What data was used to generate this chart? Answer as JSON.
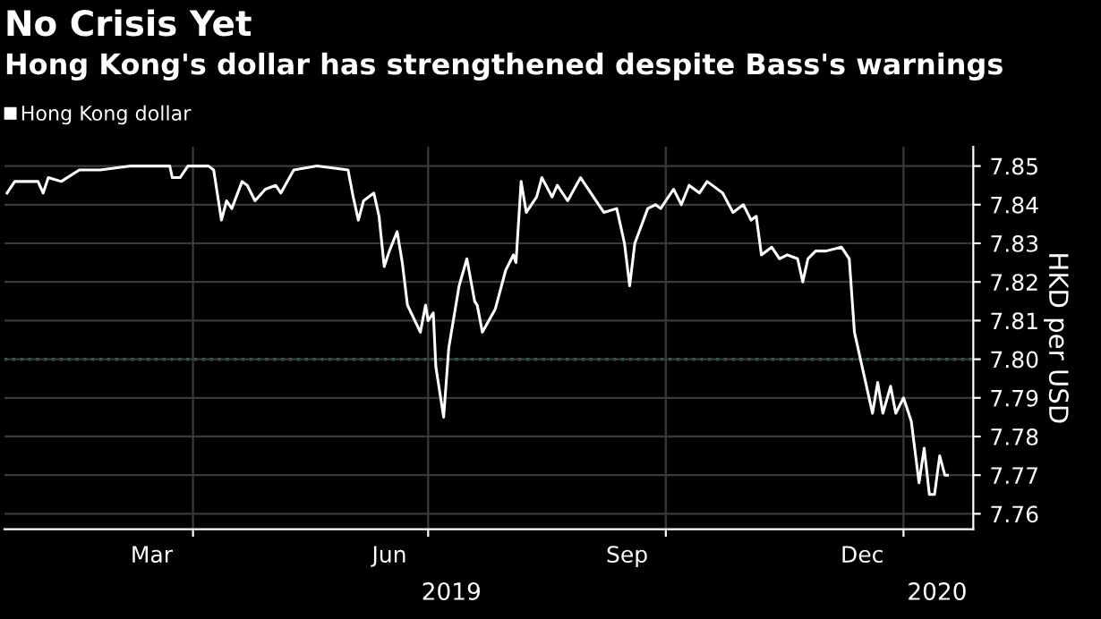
{
  "chart_data": {
    "type": "line",
    "title": "No Crisis Yet",
    "subtitle": "Hong Kong's dollar has strengthened despite Bass's warnings",
    "ylabel": "HKD per USD",
    "x": [
      "2019-01-19",
      "2019-01-22",
      "2019-01-31",
      "2019-02-02",
      "2019-02-04",
      "2019-02-09",
      "2019-02-16",
      "2019-02-24",
      "2019-03-08",
      "2019-03-23",
      "2019-03-24",
      "2019-03-27",
      "2019-03-30",
      "2019-04-07",
      "2019-04-09",
      "2019-04-12",
      "2019-04-14",
      "2019-04-16",
      "2019-04-20",
      "2019-04-22",
      "2019-04-25",
      "2019-04-29",
      "2019-05-03",
      "2019-05-05",
      "2019-05-10",
      "2019-05-19",
      "2019-05-31",
      "2019-06-02",
      "2019-06-04",
      "2019-06-06",
      "2019-06-10",
      "2019-06-12",
      "2019-06-14",
      "2019-06-16",
      "2019-06-19",
      "2019-06-21",
      "2019-06-23",
      "2019-06-28",
      "2019-06-30",
      "2019-07-01",
      "2019-07-03",
      "2019-07-04",
      "2019-07-07",
      "2019-07-09",
      "2019-07-13",
      "2019-07-16",
      "2019-07-19",
      "2019-07-20",
      "2019-07-22",
      "2019-07-27",
      "2019-07-31",
      "2019-08-03",
      "2019-08-04",
      "2019-08-06",
      "2019-08-08",
      "2019-08-12",
      "2019-08-14",
      "2019-08-18",
      "2019-08-20",
      "2019-08-24",
      "2019-08-29",
      "2019-09-02",
      "2019-09-07",
      "2019-09-12",
      "2019-09-15",
      "2019-09-17",
      "2019-09-19",
      "2019-09-24",
      "2019-09-27",
      "2019-09-29",
      "2019-10-04",
      "2019-10-07",
      "2019-10-10",
      "2019-10-14",
      "2019-10-17",
      "2019-10-23",
      "2019-10-27",
      "2019-10-31",
      "2019-11-03",
      "2019-11-05",
      "2019-11-07",
      "2019-11-11",
      "2019-11-14",
      "2019-11-17",
      "2019-11-21",
      "2019-11-23",
      "2019-11-25",
      "2019-11-28",
      "2019-12-02",
      "2019-12-08",
      "2019-12-11",
      "2019-12-13",
      "2019-12-17",
      "2019-12-20",
      "2019-12-22",
      "2019-12-24",
      "2019-12-27",
      "2019-12-29",
      "2020-01-01",
      "2020-01-02",
      "2020-01-04",
      "2020-01-07",
      "2020-01-09",
      "2020-01-11",
      "2020-01-13",
      "2020-01-15",
      "2020-01-17",
      "2020-01-18"
    ],
    "series": [
      {
        "name": "Hong Kong dollar",
        "color": "#ffffff",
        "values": [
          7.843,
          7.846,
          7.846,
          7.843,
          7.847,
          7.846,
          7.849,
          7.849,
          7.85,
          7.85,
          7.847,
          7.847,
          7.85,
          7.85,
          7.849,
          7.836,
          7.841,
          7.839,
          7.846,
          7.845,
          7.841,
          7.844,
          7.845,
          7.843,
          7.849,
          7.85,
          7.849,
          7.842,
          7.836,
          7.841,
          7.843,
          7.837,
          7.824,
          7.828,
          7.833,
          7.825,
          7.814,
          7.807,
          7.814,
          7.81,
          7.812,
          7.798,
          7.785,
          7.803,
          7.819,
          7.826,
          7.815,
          7.814,
          7.807,
          7.813,
          7.823,
          7.827,
          7.825,
          7.846,
          7.838,
          7.842,
          7.847,
          7.842,
          7.845,
          7.841,
          7.847,
          7.843,
          7.838,
          7.839,
          7.83,
          7.819,
          7.83,
          7.839,
          7.84,
          7.839,
          7.844,
          7.84,
          7.845,
          7.843,
          7.846,
          7.843,
          7.838,
          7.84,
          7.836,
          7.837,
          7.827,
          7.829,
          7.826,
          7.827,
          7.826,
          7.82,
          7.826,
          7.828,
          7.828,
          7.829,
          7.826,
          7.807,
          7.795,
          7.786,
          7.794,
          7.786,
          7.793,
          7.786,
          7.79,
          7.788,
          7.784,
          7.768,
          7.777,
          7.765,
          7.765,
          7.775,
          7.77,
          7.77
        ]
      }
    ],
    "xlim": [
      "2019-01-18",
      "2020-01-28"
    ],
    "xticks": [
      {
        "value": "2019-03-16",
        "label": "Mar"
      },
      {
        "value": "2019-04-01",
        "label": null
      },
      {
        "value": "2019-06-16",
        "label": "Jun"
      },
      {
        "value": "2019-07-01",
        "label": null
      },
      {
        "value": "2019-09-16",
        "label": "Sep"
      },
      {
        "value": "2019-10-01",
        "label": null
      },
      {
        "value": "2019-12-16",
        "label": "Dec"
      },
      {
        "value": "2020-01-01",
        "label": null
      }
    ],
    "x2ticks": [
      {
        "value": "2019-07-10",
        "label": "2019"
      },
      {
        "value": "2020-01-14",
        "label": "2020"
      }
    ],
    "x2lim": [
      "2019-01-18",
      "2020-01-28"
    ],
    "ylim": [
      7.756,
      7.855
    ],
    "yticks": [
      7.76,
      7.77,
      7.78,
      7.79,
      {
        "value": 7.8,
        "label": "7.80"
      },
      7.81,
      7.82,
      7.83,
      7.84,
      7.85
    ],
    "ref_lines": [
      {
        "axis": "y",
        "value": 7.8,
        "color": "#1fa39a",
        "line_style": "dotted"
      }
    ],
    "grid": true,
    "legend": "top left"
  }
}
